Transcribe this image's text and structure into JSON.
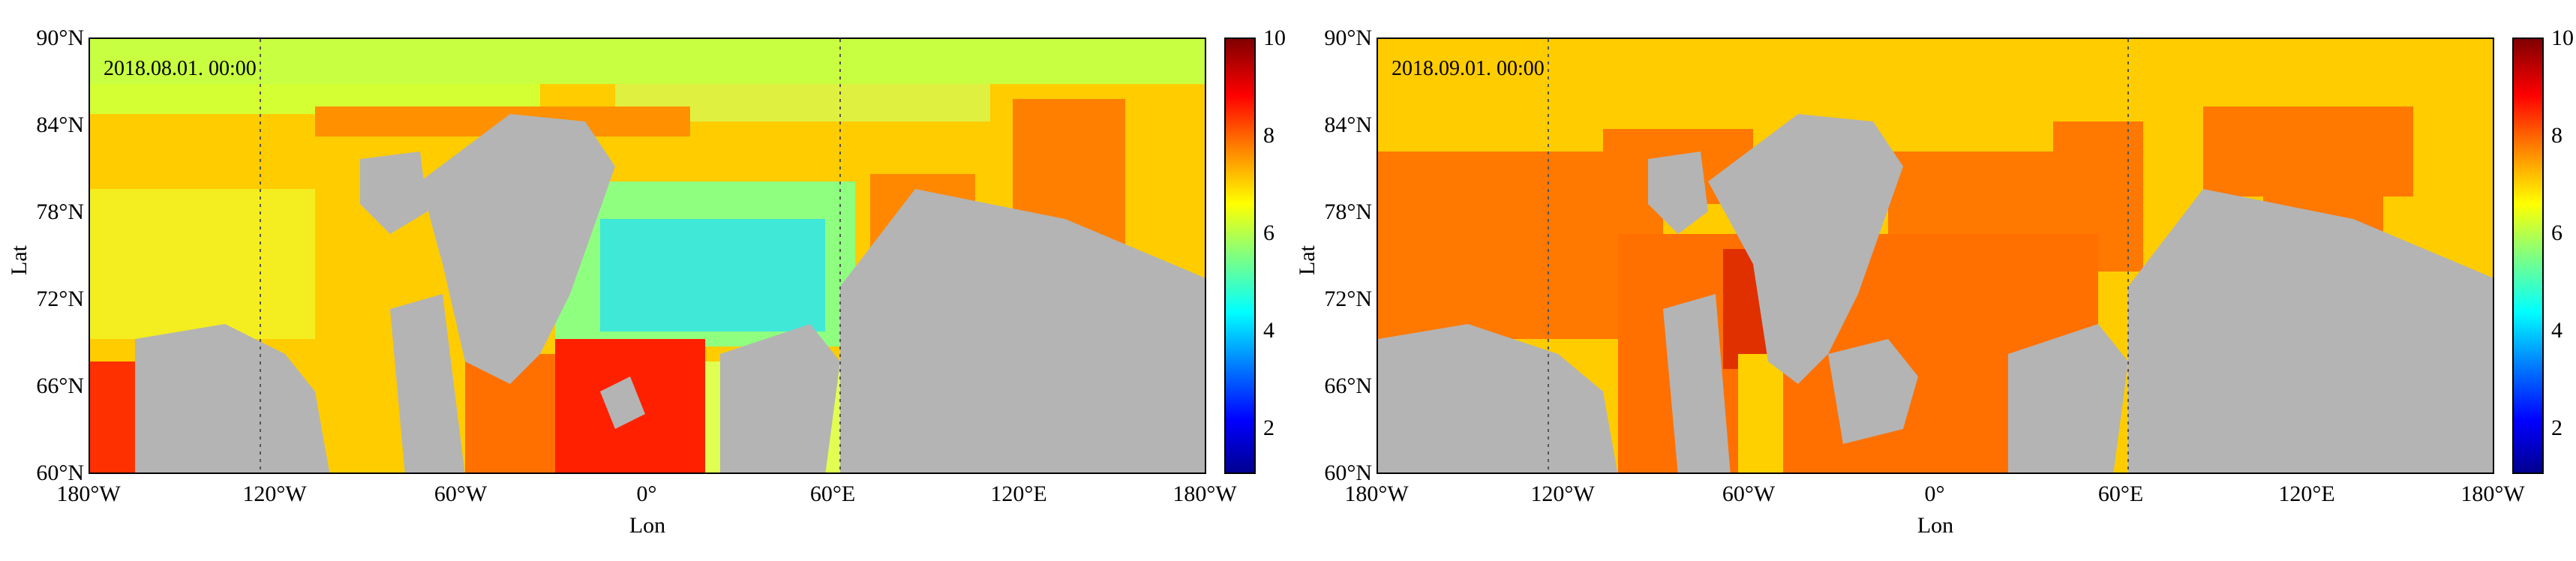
{
  "panels": [
    {
      "timestamp": "2018.08.01. 00:00",
      "y_ticks": [
        "90°N",
        "84°N",
        "78°N",
        "72°N",
        "66°N",
        "60°N"
      ],
      "x_ticks": [
        "180°W",
        "120°W",
        "60°W",
        "0°",
        "60°E",
        "120°E",
        "180°W"
      ],
      "xlabel": "Lon",
      "ylabel": "Lat",
      "colorbar_ticks": [
        "10",
        "8",
        "6",
        "4",
        "2"
      ]
    },
    {
      "timestamp": "2018.09.01. 00:00",
      "y_ticks": [
        "90°N",
        "84°N",
        "78°N",
        "72°N",
        "66°N",
        "60°N"
      ],
      "x_ticks": [
        "180°W",
        "120°W",
        "60°W",
        "0°",
        "60°E",
        "120°E",
        "180°W"
      ],
      "xlabel": "Lon",
      "ylabel": "Lat",
      "colorbar_ticks": [
        "10",
        "8",
        "6",
        "4",
        "2"
      ]
    }
  ],
  "colors": {
    "land": "#b4b4b4",
    "colormap": [
      "#00008f",
      "#0000ff",
      "#0080ff",
      "#00ffff",
      "#80ff80",
      "#ffff00",
      "#ff8000",
      "#ff0000",
      "#800000"
    ]
  }
}
